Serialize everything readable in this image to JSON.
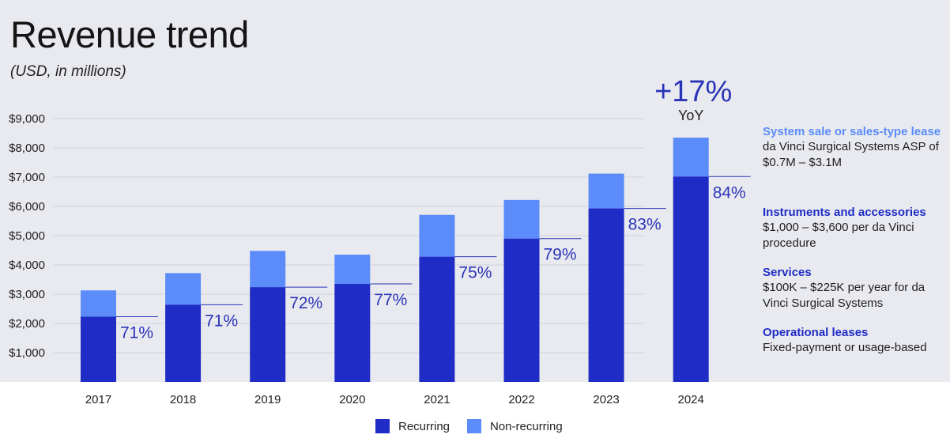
{
  "header": {
    "title": "Revenue trend",
    "subtitle": "(USD, in millions)"
  },
  "colors": {
    "recurring": "#1f2cc6",
    "non_recurring": "#5b8cfa",
    "panel_bg": "#e9eaef",
    "pct_text": "#2a34b8",
    "grid": "#d1d3db",
    "info_title_light": "#5b8cfa",
    "info_title_dark": "#1f2cc6"
  },
  "chart_data": {
    "type": "bar",
    "stacked": true,
    "title": "Revenue trend",
    "subtitle": "(USD, in millions)",
    "categories": [
      "2017",
      "2018",
      "2019",
      "2020",
      "2021",
      "2022",
      "2023",
      "2024"
    ],
    "series": [
      {
        "name": "Recurring",
        "values": [
          2230,
          2640,
          3240,
          3350,
          4280,
          4900,
          5930,
          7020
        ]
      },
      {
        "name": "Non-recurring",
        "values": [
          900,
          1080,
          1240,
          1000,
          1430,
          1320,
          1190,
          1330
        ]
      }
    ],
    "totals": [
      3130,
      3720,
      4480,
      4350,
      5710,
      6220,
      7120,
      8350
    ],
    "recurring_pct_labels": [
      "71%",
      "71%",
      "72%",
      "77%",
      "75%",
      "79%",
      "83%",
      "84%"
    ],
    "yticks": [
      1000,
      2000,
      3000,
      4000,
      5000,
      6000,
      7000,
      8000,
      9000
    ],
    "ytick_labels": [
      "$1,000",
      "$2,000",
      "$3,000",
      "$4,000",
      "$5,000",
      "$6,000",
      "$7,000",
      "$8,000",
      "$9,000"
    ],
    "ylim": [
      0,
      9000
    ],
    "grid": true,
    "legend_position": "bottom-center",
    "annotation": {
      "value": "+17%",
      "label": "YoY",
      "category": "2024"
    }
  },
  "legend": [
    {
      "label": "Recurring",
      "series": "recurring"
    },
    {
      "label": "Non-recurring",
      "series": "non_recurring"
    }
  ],
  "info": [
    {
      "title": "System sale or sales-type lease",
      "title_color": "light",
      "desc": "da Vinci Surgical Systems ASP of $0.7M – $3.1M"
    },
    {
      "title": "Instruments and accessories",
      "title_color": "dark",
      "desc": "$1,000 – $3,600 per da Vinci procedure"
    },
    {
      "title": "Services",
      "title_color": "dark",
      "desc": "$100K – $225K per year for da Vinci Surgical Systems"
    },
    {
      "title": "Operational leases",
      "title_color": "dark",
      "desc": "Fixed-payment or usage-based"
    }
  ]
}
